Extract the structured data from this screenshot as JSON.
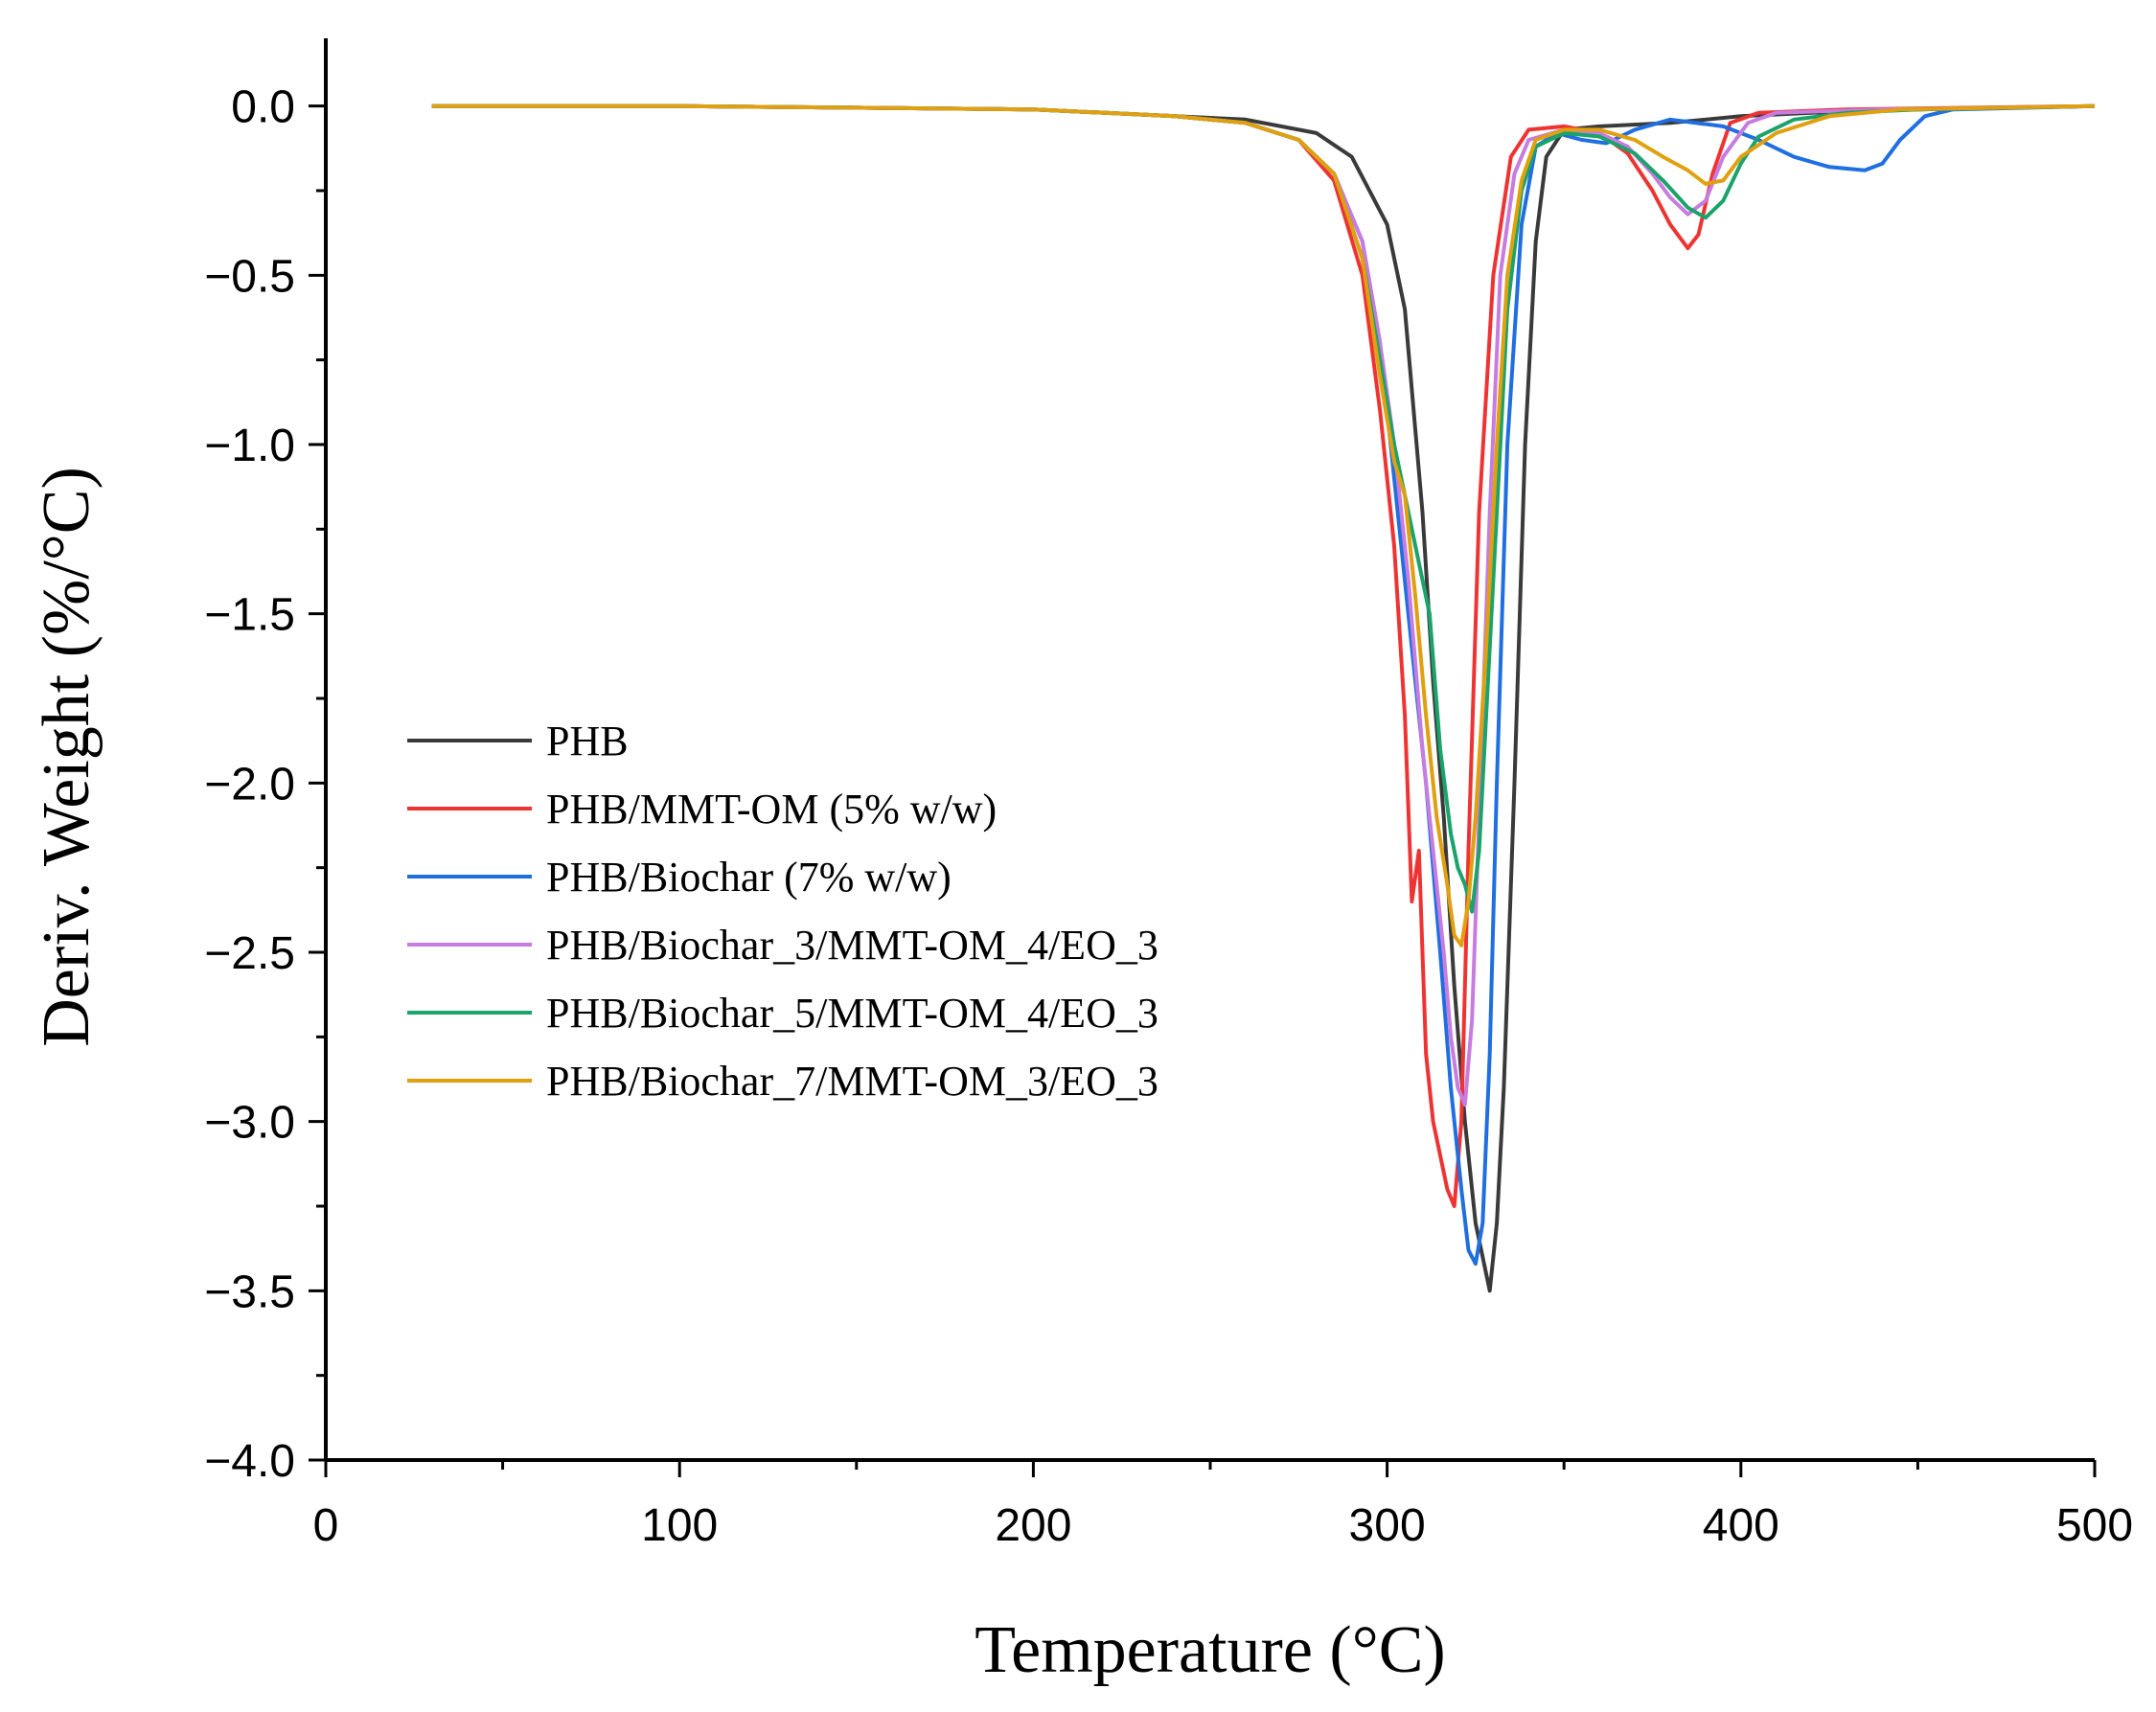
{
  "chart_data": {
    "type": "line",
    "title": "",
    "xlabel": "Temperature (°C)",
    "ylabel": "Deriv. Weight (%/°C)",
    "xlim": [
      0,
      500
    ],
    "ylim": [
      -4.0,
      0.2
    ],
    "x_ticks": [
      0,
      100,
      200,
      300,
      400,
      500
    ],
    "x_tick_labels": [
      "0",
      "100",
      "200",
      "300",
      "400",
      "500"
    ],
    "y_ticks": [
      0.0,
      -0.5,
      -1.0,
      -1.5,
      -2.0,
      -2.5,
      -3.0,
      -3.5,
      -4.0
    ],
    "y_tick_labels": [
      "0.0",
      "−0.5",
      "−1.0",
      "−1.5",
      "−2.0",
      "−2.5",
      "−3.0",
      "−3.5",
      "−4.0"
    ],
    "grid": false,
    "legend_position": "center-left",
    "series": [
      {
        "name": "PHB",
        "color": "#3a3a3a",
        "points": [
          [
            30,
            0
          ],
          [
            100,
            0
          ],
          [
            200,
            -0.01
          ],
          [
            240,
            -0.03
          ],
          [
            260,
            -0.04
          ],
          [
            280,
            -0.08
          ],
          [
            290,
            -0.15
          ],
          [
            300,
            -0.35
          ],
          [
            305,
            -0.6
          ],
          [
            310,
            -1.2
          ],
          [
            313,
            -1.7
          ],
          [
            316,
            -2.1
          ],
          [
            319,
            -2.6
          ],
          [
            322,
            -3.0
          ],
          [
            325,
            -3.3
          ],
          [
            327,
            -3.4
          ],
          [
            329,
            -3.5
          ],
          [
            331,
            -3.3
          ],
          [
            333,
            -2.9
          ],
          [
            336,
            -2.0
          ],
          [
            339,
            -1.0
          ],
          [
            342,
            -0.4
          ],
          [
            345,
            -0.15
          ],
          [
            350,
            -0.07
          ],
          [
            360,
            -0.06
          ],
          [
            380,
            -0.05
          ],
          [
            400,
            -0.03
          ],
          [
            420,
            -0.02
          ],
          [
            450,
            -0.01
          ],
          [
            500,
            0
          ]
        ]
      },
      {
        "name": "PHB/MMT-OM (5% w/w)",
        "color": "#ee3333",
        "points": [
          [
            30,
            0
          ],
          [
            100,
            0
          ],
          [
            200,
            -0.01
          ],
          [
            240,
            -0.03
          ],
          [
            260,
            -0.05
          ],
          [
            275,
            -0.1
          ],
          [
            285,
            -0.22
          ],
          [
            293,
            -0.5
          ],
          [
            298,
            -0.9
          ],
          [
            302,
            -1.3
          ],
          [
            305,
            -1.8
          ],
          [
            307,
            -2.35
          ],
          [
            309,
            -2.2
          ],
          [
            311,
            -2.8
          ],
          [
            313,
            -3.0
          ],
          [
            315,
            -3.1
          ],
          [
            317,
            -3.2
          ],
          [
            319,
            -3.25
          ],
          [
            321,
            -3.0
          ],
          [
            323,
            -2.2
          ],
          [
            326,
            -1.2
          ],
          [
            330,
            -0.5
          ],
          [
            335,
            -0.15
          ],
          [
            340,
            -0.07
          ],
          [
            350,
            -0.06
          ],
          [
            360,
            -0.08
          ],
          [
            368,
            -0.14
          ],
          [
            375,
            -0.25
          ],
          [
            380,
            -0.35
          ],
          [
            385,
            -0.42
          ],
          [
            388,
            -0.38
          ],
          [
            392,
            -0.2
          ],
          [
            397,
            -0.05
          ],
          [
            405,
            -0.02
          ],
          [
            430,
            -0.01
          ],
          [
            500,
            0
          ]
        ]
      },
      {
        "name": "PHB/Biochar (7% w/w)",
        "color": "#1f6fe0",
        "points": [
          [
            30,
            0
          ],
          [
            100,
            0
          ],
          [
            200,
            -0.01
          ],
          [
            240,
            -0.03
          ],
          [
            260,
            -0.05
          ],
          [
            275,
            -0.1
          ],
          [
            285,
            -0.2
          ],
          [
            293,
            -0.4
          ],
          [
            298,
            -0.7
          ],
          [
            303,
            -1.2
          ],
          [
            307,
            -1.6
          ],
          [
            311,
            -2.0
          ],
          [
            315,
            -2.5
          ],
          [
            318,
            -2.9
          ],
          [
            321,
            -3.2
          ],
          [
            323,
            -3.38
          ],
          [
            325,
            -3.42
          ],
          [
            327,
            -3.3
          ],
          [
            329,
            -2.8
          ],
          [
            331,
            -2.0
          ],
          [
            334,
            -1.0
          ],
          [
            338,
            -0.35
          ],
          [
            342,
            -0.12
          ],
          [
            348,
            -0.08
          ],
          [
            355,
            -0.1
          ],
          [
            362,
            -0.11
          ],
          [
            370,
            -0.07
          ],
          [
            380,
            -0.04
          ],
          [
            395,
            -0.06
          ],
          [
            405,
            -0.1
          ],
          [
            415,
            -0.15
          ],
          [
            425,
            -0.18
          ],
          [
            435,
            -0.19
          ],
          [
            440,
            -0.17
          ],
          [
            445,
            -0.1
          ],
          [
            452,
            -0.03
          ],
          [
            460,
            -0.01
          ],
          [
            500,
            0
          ]
        ]
      },
      {
        "name": "PHB/Biochar_3/MMT-OM_4/EO_3",
        "color": "#c77ce0",
        "points": [
          [
            30,
            0
          ],
          [
            100,
            0
          ],
          [
            200,
            -0.01
          ],
          [
            240,
            -0.03
          ],
          [
            260,
            -0.05
          ],
          [
            275,
            -0.1
          ],
          [
            285,
            -0.2
          ],
          [
            293,
            -0.4
          ],
          [
            298,
            -0.7
          ],
          [
            302,
            -1.0
          ],
          [
            306,
            -1.4
          ],
          [
            310,
            -1.9
          ],
          [
            313,
            -2.2
          ],
          [
            316,
            -2.5
          ],
          [
            318,
            -2.75
          ],
          [
            320,
            -2.9
          ],
          [
            322,
            -2.95
          ],
          [
            324,
            -2.7
          ],
          [
            326,
            -2.1
          ],
          [
            329,
            -1.2
          ],
          [
            332,
            -0.5
          ],
          [
            336,
            -0.2
          ],
          [
            340,
            -0.1
          ],
          [
            350,
            -0.07
          ],
          [
            360,
            -0.08
          ],
          [
            368,
            -0.12
          ],
          [
            375,
            -0.2
          ],
          [
            380,
            -0.27
          ],
          [
            385,
            -0.32
          ],
          [
            390,
            -0.28
          ],
          [
            395,
            -0.15
          ],
          [
            402,
            -0.05
          ],
          [
            410,
            -0.02
          ],
          [
            440,
            -0.01
          ],
          [
            500,
            0
          ]
        ]
      },
      {
        "name": "PHB/Biochar_5/MMT-OM_4/EO_3",
        "color": "#1aa36a",
        "points": [
          [
            30,
            0
          ],
          [
            100,
            0
          ],
          [
            200,
            -0.01
          ],
          [
            240,
            -0.03
          ],
          [
            260,
            -0.05
          ],
          [
            275,
            -0.1
          ],
          [
            285,
            -0.2
          ],
          [
            293,
            -0.45
          ],
          [
            298,
            -0.75
          ],
          [
            302,
            -1.0
          ],
          [
            306,
            -1.2
          ],
          [
            309,
            -1.35
          ],
          [
            312,
            -1.5
          ],
          [
            315,
            -1.9
          ],
          [
            318,
            -2.15
          ],
          [
            320,
            -2.25
          ],
          [
            322,
            -2.3
          ],
          [
            324,
            -2.38
          ],
          [
            326,
            -2.2
          ],
          [
            328,
            -1.8
          ],
          [
            331,
            -1.2
          ],
          [
            334,
            -0.6
          ],
          [
            338,
            -0.25
          ],
          [
            342,
            -0.12
          ],
          [
            350,
            -0.08
          ],
          [
            360,
            -0.09
          ],
          [
            370,
            -0.14
          ],
          [
            378,
            -0.22
          ],
          [
            385,
            -0.3
          ],
          [
            390,
            -0.33
          ],
          [
            395,
            -0.28
          ],
          [
            400,
            -0.17
          ],
          [
            405,
            -0.09
          ],
          [
            415,
            -0.04
          ],
          [
            430,
            -0.02
          ],
          [
            450,
            -0.01
          ],
          [
            500,
            0
          ]
        ]
      },
      {
        "name": "PHB/Biochar_7/MMT-OM_3/EO_3",
        "color": "#e0a010",
        "points": [
          [
            30,
            0
          ],
          [
            100,
            0
          ],
          [
            200,
            -0.01
          ],
          [
            240,
            -0.03
          ],
          [
            260,
            -0.05
          ],
          [
            275,
            -0.1
          ],
          [
            285,
            -0.2
          ],
          [
            293,
            -0.45
          ],
          [
            298,
            -0.8
          ],
          [
            302,
            -1.05
          ],
          [
            305,
            -1.15
          ],
          [
            308,
            -1.45
          ],
          [
            311,
            -1.8
          ],
          [
            314,
            -2.1
          ],
          [
            317,
            -2.3
          ],
          [
            319,
            -2.45
          ],
          [
            321,
            -2.48
          ],
          [
            323,
            -2.35
          ],
          [
            325,
            -2.1
          ],
          [
            328,
            -1.6
          ],
          [
            331,
            -1.0
          ],
          [
            334,
            -0.5
          ],
          [
            338,
            -0.22
          ],
          [
            342,
            -0.1
          ],
          [
            350,
            -0.07
          ],
          [
            360,
            -0.07
          ],
          [
            370,
            -0.1
          ],
          [
            378,
            -0.15
          ],
          [
            385,
            -0.19
          ],
          [
            390,
            -0.23
          ],
          [
            395,
            -0.22
          ],
          [
            400,
            -0.15
          ],
          [
            410,
            -0.08
          ],
          [
            425,
            -0.03
          ],
          [
            445,
            -0.01
          ],
          [
            500,
            0
          ]
        ]
      }
    ]
  }
}
